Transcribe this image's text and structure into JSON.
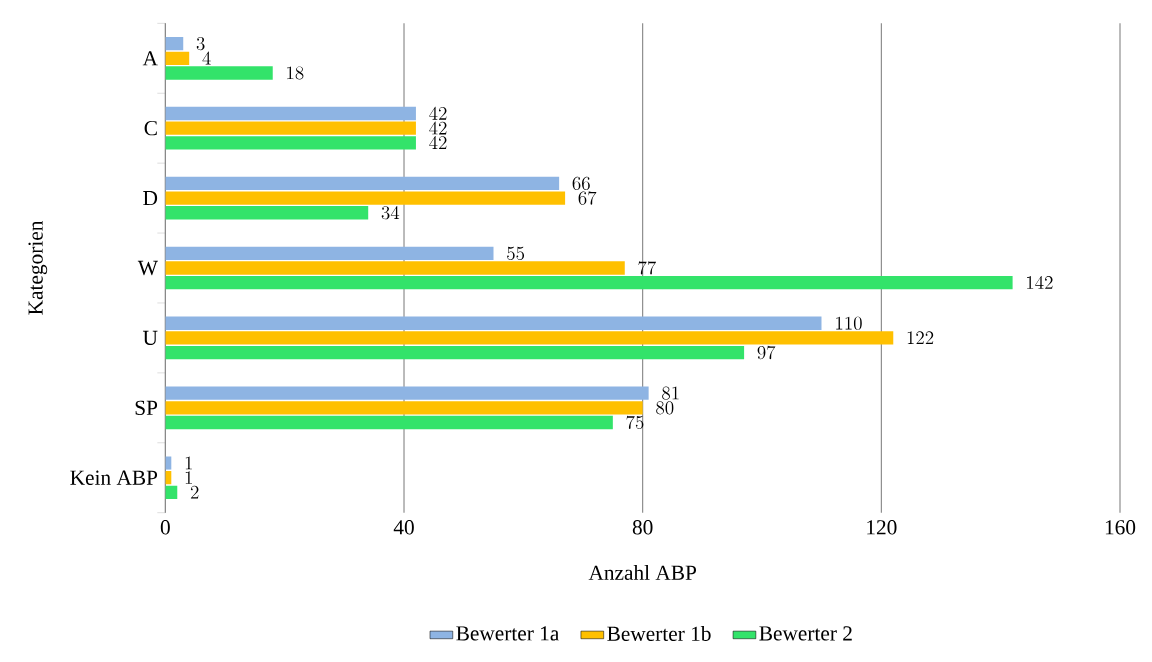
{
  "chart_data": {
    "type": "bar",
    "orientation": "horizontal",
    "xlabel": "Anzahl ABP",
    "ylabel": "Kategorien",
    "categories": [
      "A",
      "C",
      "D",
      "W",
      "U",
      "SP",
      "Kein ABP"
    ],
    "series": [
      {
        "name": "Bewerter 1a",
        "color": "#8eb4e3",
        "values": [
          3,
          42,
          66,
          55,
          110,
          81,
          1
        ]
      },
      {
        "name": "Bewerter 1b",
        "color": "#ffc000",
        "values": [
          4,
          42,
          67,
          77,
          122,
          80,
          1
        ]
      },
      {
        "name": "Bewerter 2",
        "color": "#33e36a",
        "values": [
          18,
          42,
          34,
          142,
          97,
          75,
          2
        ]
      }
    ],
    "xlim": [
      0,
      160
    ],
    "xticks": [
      0,
      40,
      80,
      120,
      160
    ],
    "grid": "x",
    "legend": "bottom",
    "data_labels": true
  }
}
